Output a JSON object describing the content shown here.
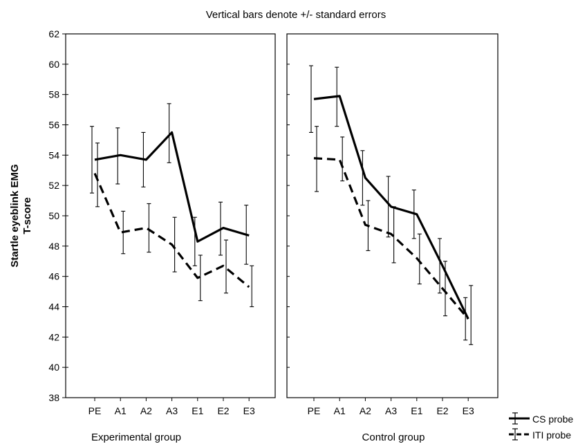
{
  "chart_data": {
    "type": "line",
    "title": "Vertical bars denote +/- standard errors",
    "ylabel": [
      "Startle eyeblink EMG",
      "T-score"
    ],
    "ylim": [
      38,
      62
    ],
    "yticks": [
      38,
      40,
      42,
      44,
      46,
      48,
      50,
      52,
      54,
      56,
      58,
      60,
      62
    ],
    "grid": false,
    "legend_placement": "bottom-right",
    "categories": [
      "PE",
      "A1",
      "A2",
      "A3",
      "E1",
      "E2",
      "E3"
    ],
    "panels": [
      {
        "xlabel": "Experimental group",
        "series": [
          {
            "name": "CS probe",
            "style": "solid",
            "values": [
              53.7,
              54.0,
              53.7,
              55.5,
              48.3,
              49.2,
              48.7
            ],
            "lower": [
              51.5,
              52.1,
              51.9,
              53.5,
              46.7,
              47.4,
              46.8
            ],
            "upper": [
              55.9,
              55.8,
              55.5,
              57.4,
              49.9,
              50.9,
              50.7
            ]
          },
          {
            "name": "ITI probe",
            "style": "dashed",
            "values": [
              52.8,
              48.9,
              49.2,
              48.1,
              45.9,
              46.7,
              45.3
            ],
            "lower": [
              50.6,
              47.5,
              47.6,
              46.3,
              44.4,
              44.9,
              44.0
            ],
            "upper": [
              54.8,
              50.3,
              50.8,
              49.9,
              47.4,
              48.4,
              46.7
            ]
          }
        ]
      },
      {
        "xlabel": "Control group",
        "series": [
          {
            "name": "CS probe",
            "style": "solid",
            "values": [
              57.7,
              57.9,
              52.5,
              50.6,
              50.1,
              46.7,
              43.2
            ],
            "lower": [
              55.5,
              55.9,
              50.7,
              48.6,
              48.5,
              44.9,
              41.8
            ],
            "upper": [
              59.9,
              59.8,
              54.3,
              52.6,
              51.7,
              48.5,
              44.6
            ]
          },
          {
            "name": "ITI probe",
            "style": "dashed",
            "values": [
              53.8,
              53.7,
              49.4,
              48.8,
              47.2,
              45.2,
              43.2
            ],
            "lower": [
              51.6,
              52.3,
              47.7,
              46.9,
              45.5,
              43.4,
              41.5
            ],
            "upper": [
              55.9,
              55.2,
              51.0,
              50.6,
              48.8,
              47.0,
              45.4
            ]
          }
        ]
      }
    ],
    "legend": [
      {
        "label": "CS probe",
        "style": "solid"
      },
      {
        "label": "ITI probe",
        "style": "dashed"
      }
    ]
  }
}
